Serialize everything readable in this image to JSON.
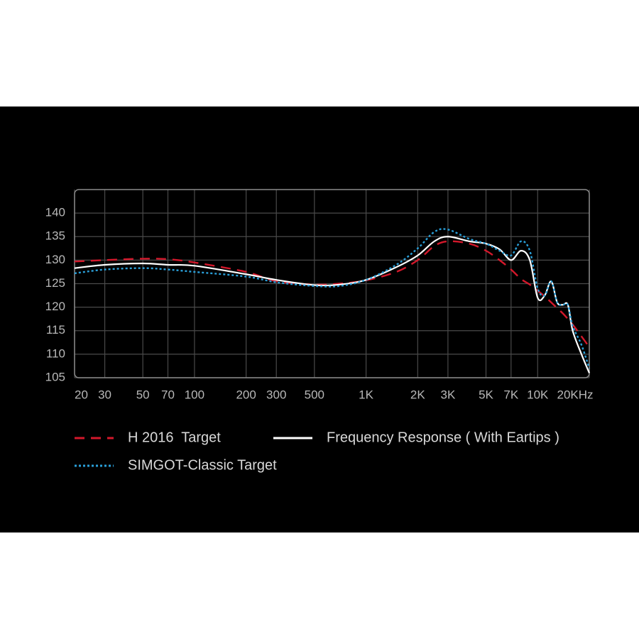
{
  "chart_data": {
    "type": "line",
    "x_scale": "log",
    "grid": true,
    "x": [
      20,
      30,
      50,
      70,
      100,
      200,
      300,
      500,
      700,
      1000,
      1500,
      2000,
      2500,
      3000,
      4000,
      5000,
      6000,
      7000,
      8000,
      9000,
      10000,
      11000,
      12000,
      13000,
      14000,
      15000,
      16000,
      18000,
      20000
    ],
    "series": [
      {
        "name": "H 2016  Target",
        "color": "#d3182b",
        "style": "dashed",
        "values": [
          129.7,
          130,
          130.3,
          130.2,
          129.5,
          127.5,
          125.5,
          124.8,
          125,
          125.7,
          127.5,
          130,
          133,
          134,
          133.5,
          132,
          130,
          128,
          126,
          124.8,
          123.5,
          122.3,
          121,
          119.8,
          118.7,
          117.5,
          116.3,
          113.8,
          111.5
        ]
      },
      {
        "name": "Frequency Response ( With Eartips )",
        "color": "#ffffff",
        "style": "solid",
        "values": [
          128.3,
          129,
          129.3,
          129,
          128.8,
          127,
          125.8,
          124.7,
          124.8,
          125.8,
          128.5,
          131,
          134,
          135,
          134,
          133.5,
          132.3,
          130,
          132,
          130,
          122,
          122.5,
          125.5,
          121,
          120.5,
          120.5,
          115,
          110,
          106
        ]
      },
      {
        "name": "SIMGOT-Classic Target",
        "color": "#2a9fd8",
        "style": "dotted",
        "values": [
          127.2,
          128,
          128.3,
          128,
          127.5,
          126.5,
          125.3,
          124.5,
          124.5,
          125.8,
          129,
          132.5,
          136,
          136.5,
          134.5,
          133.5,
          132,
          131,
          134,
          132,
          124,
          122.5,
          125.5,
          121,
          120.5,
          120.5,
          116,
          112,
          107
        ]
      }
    ],
    "xlim": [
      20,
      20000
    ],
    "xticks": [
      20,
      30,
      50,
      70,
      100,
      200,
      300,
      500,
      {
        "value": 1000,
        "label": "1K"
      },
      {
        "value": 2000,
        "label": "2K"
      },
      {
        "value": 3000,
        "label": "3K"
      },
      {
        "value": 5000,
        "label": "5K"
      },
      {
        "value": 7000,
        "label": "7K"
      },
      {
        "value": 10000,
        "label": "10K"
      },
      {
        "value": 20000,
        "label": "20KHz"
      }
    ],
    "ylim": [
      105,
      145
    ],
    "yticks": [
      105,
      110,
      115,
      120,
      125,
      130,
      135,
      140
    ]
  }
}
